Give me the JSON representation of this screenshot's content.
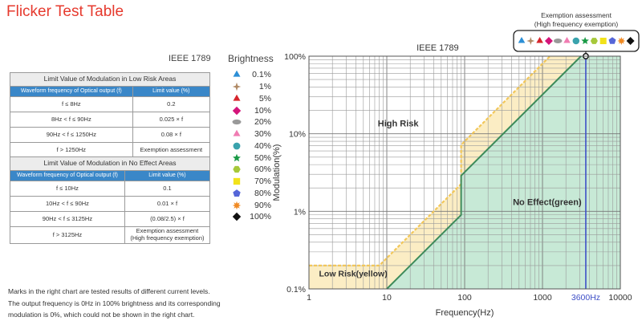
{
  "page_title": "Flicker Test Table",
  "table_heading": "IEEE 1789",
  "brightness_title": "Brightness",
  "legend": [
    {
      "label": "0.1%",
      "shape": "triangle",
      "color": "#2c8fd6"
    },
    {
      "label": "1%",
      "shape": "star4",
      "color": "#b08a66"
    },
    {
      "label": "5%",
      "shape": "triangle",
      "color": "#d6252c"
    },
    {
      "label": "10%",
      "shape": "diamond",
      "color": "#d4147a"
    },
    {
      "label": "20%",
      "shape": "ellipse",
      "color": "#999999"
    },
    {
      "label": "30%",
      "shape": "triangle",
      "color": "#f07cb2"
    },
    {
      "label": "40%",
      "shape": "circle",
      "color": "#3aa3ad"
    },
    {
      "label": "50%",
      "shape": "star5",
      "color": "#1a9a46"
    },
    {
      "label": "60%",
      "shape": "hexagon",
      "color": "#a6c83a"
    },
    {
      "label": "70%",
      "shape": "square",
      "color": "#f2e21a"
    },
    {
      "label": "80%",
      "shape": "pentagon",
      "color": "#5566d8"
    },
    {
      "label": "90%",
      "shape": "star8",
      "color": "#f08a24"
    },
    {
      "label": "100%",
      "shape": "diamond",
      "color": "#111111"
    }
  ],
  "low_risk_table": {
    "title": "Limit Value of Modulation in Low Risk Areas",
    "columns": [
      "Waveform frequency of Optical output (f)",
      "Limit value (%)"
    ],
    "rows": [
      [
        "f ≤ 8Hz",
        "0.2"
      ],
      [
        "8Hz < f ≤ 90Hz",
        "0.025 × f"
      ],
      [
        "90Hz < f ≤ 1250Hz",
        "0.08 × f"
      ],
      [
        "f > 1250Hz",
        "Exemption assessment"
      ]
    ]
  },
  "no_effect_table": {
    "title": "Limit Value of Modulation in No Effect Areas",
    "columns": [
      "Waveform frequency of Optical output (f)",
      "Limit value (%)"
    ],
    "rows": [
      [
        "f ≤ 10Hz",
        "0.1"
      ],
      [
        "10Hz < f ≤ 90Hz",
        "0.01 × f"
      ],
      [
        "90Hz < f ≤ 3125Hz",
        "(0.08/2.5) × f"
      ],
      [
        "f > 3125Hz",
        "Exemption assessment\n(High frequency exemption)"
      ]
    ]
  },
  "note_lines": [
    "Marks in the right chart are tested results of different current levels.",
    "The output frequency is 0Hz in 100% brightness and its corresponding",
    "modulation is 0%, which could not be shown in the right chart."
  ],
  "chart_data": {
    "type": "area",
    "title": "IEEE 1789",
    "xlabel": "Frequency(Hz)",
    "ylabel": "Modulation(%)",
    "x_scale": "log",
    "y_scale": "log",
    "xlim": [
      1,
      10000
    ],
    "ylim": [
      0.1,
      100
    ],
    "x_ticks": [
      "1",
      "10",
      "100",
      "1000",
      "3600Hz",
      "10000"
    ],
    "y_ticks": [
      "0.1%",
      "1%",
      "10%",
      "100%"
    ],
    "grid": true,
    "regions": [
      {
        "name": "High Risk",
        "color": "#ffffff"
      },
      {
        "name": "Low Risk(yellow)",
        "color": "#fbedc4"
      },
      {
        "name": "No Effect(green)",
        "color": "#c7e9d6"
      }
    ],
    "series": [
      {
        "name": "Low Risk(yellow)",
        "color": "#f2c75a",
        "points": [
          [
            1,
            0.2
          ],
          [
            8,
            0.2
          ],
          [
            90,
            2.25
          ],
          [
            90,
            7.2
          ],
          [
            1250,
            100
          ]
        ]
      },
      {
        "name": "No Effect(green)",
        "color": "#3d8b5a",
        "points": [
          [
            10,
            0.1
          ],
          [
            90,
            0.9
          ],
          [
            90,
            2.88
          ],
          [
            3125,
            100
          ]
        ]
      }
    ],
    "marker_line": {
      "x": 3600,
      "label": "3600Hz",
      "color": "#3e4fc7"
    },
    "test_point": {
      "x": 3600,
      "y": 100
    },
    "exemption_box": {
      "title": "Exemption assessment",
      "subtitle": "(High frequency exemption)"
    }
  }
}
